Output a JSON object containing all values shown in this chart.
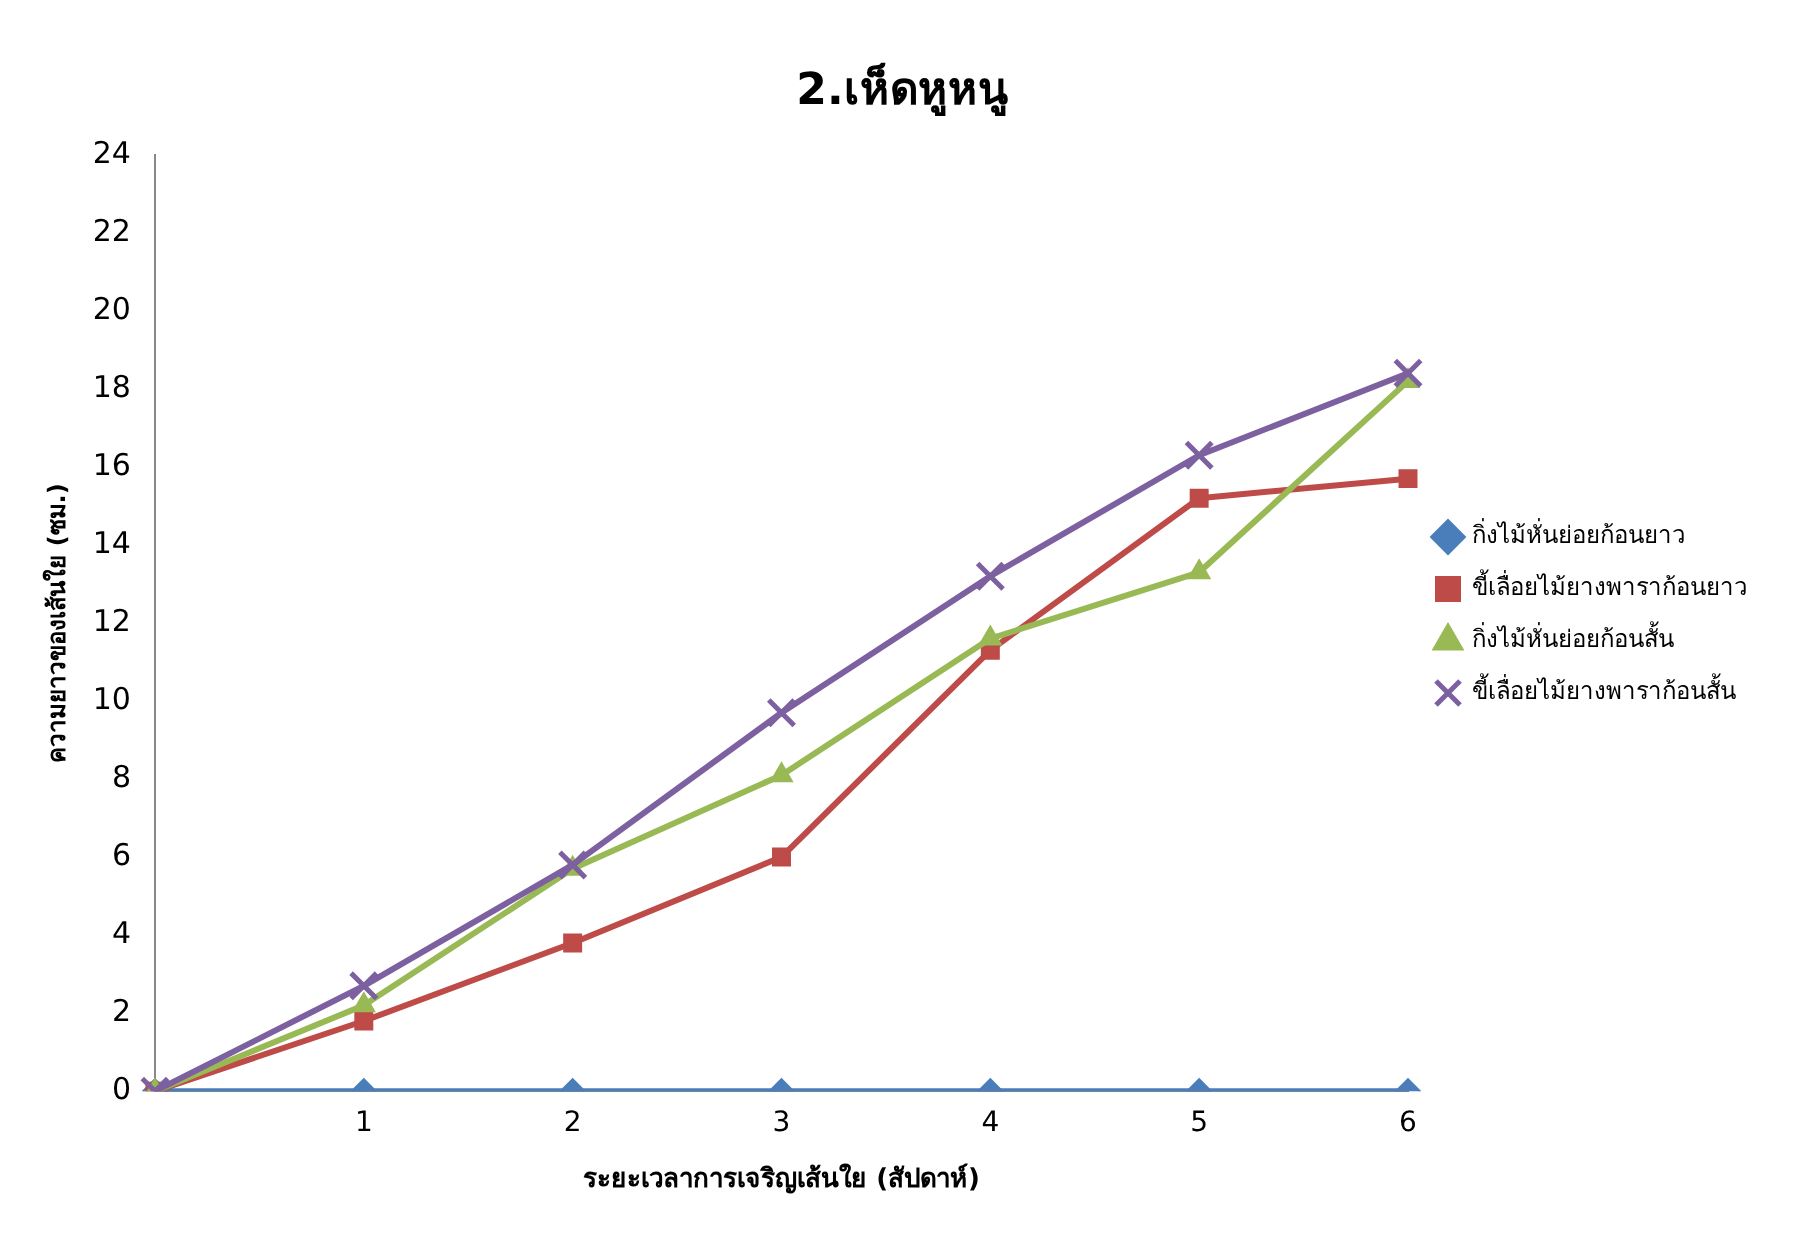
{
  "chart_data": {
    "type": "line",
    "title": "2.เห็ดหูหนู",
    "xlabel": "ระยะเวลาการเจริญเส้นใย (สัปดาห์)",
    "ylabel": "ความยาวของเส้นใย (ซม.)",
    "categories": [
      null,
      "1",
      "2",
      "3",
      "4",
      "5",
      "6"
    ],
    "series": [
      {
        "name": "กิ่งไม้หั่นย่อยก้อนยาว",
        "color": "#4a7ebb",
        "marker": "diamond",
        "values": [
          0,
          0,
          0,
          0,
          0,
          0,
          0
        ]
      },
      {
        "name": "ขี้เลื่อยไม้ยางพาราก้อนยาว",
        "color": "#be4b48",
        "marker": "square",
        "values": [
          0,
          1.8,
          3.8,
          6,
          11.3,
          15.2,
          15.7
        ]
      },
      {
        "name": "กิ่งไม้หั่นย่อยก้อนสั้น",
        "color": "#98b954",
        "marker": "triangle",
        "values": [
          0,
          2.2,
          5.7,
          8.1,
          11.6,
          13.3,
          18.2
        ]
      },
      {
        "name": "ขี้เลื่อยไม้ยางพาราก้อนสั้น",
        "color": "#7d60a0",
        "marker": "cross",
        "values": [
          0,
          2.7,
          5.8,
          9.7,
          13.2,
          16.3,
          18.4
        ]
      }
    ],
    "ylim": [
      0,
      24
    ],
    "yticks": [
      0,
      2,
      4,
      6,
      8,
      10,
      12,
      14,
      16,
      18,
      20,
      22,
      24
    ],
    "grid": false,
    "legend": "right"
  }
}
